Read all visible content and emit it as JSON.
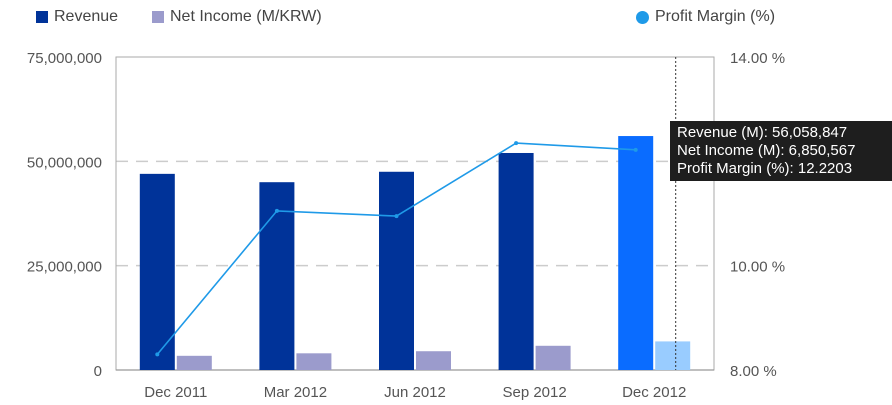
{
  "legend": {
    "revenue_label": "Revenue",
    "net_income_label": "Net Income (M/KRW)",
    "profit_margin_label": "Profit Margin (%)"
  },
  "colors": {
    "revenue": "#003399",
    "revenue_highlight": "#0a6cff",
    "net_income": "#9b9bcc",
    "net_income_highlight": "#99ccff",
    "profit_margin": "#1f9ae8",
    "gridline": "#cccccc",
    "axis_text": "#555555"
  },
  "tooltip": {
    "line1": "Revenue (M): 56,058,847",
    "line2": "Net Income (M): 6,850,567",
    "line3": "Profit Margin (%): 12.2203"
  },
  "chart_data": {
    "type": "bar",
    "categories": [
      "Dec 2011",
      "Mar 2012",
      "Jun 2012",
      "Sep 2012",
      "Dec 2012"
    ],
    "series": [
      {
        "name": "Revenue",
        "values": [
          47000000,
          45000000,
          47500000,
          52000000,
          56058847
        ],
        "axis": "left"
      },
      {
        "name": "Net Income (M/KRW)",
        "values": [
          3400000,
          4000000,
          4500000,
          5800000,
          6850567
        ],
        "axis": "left"
      },
      {
        "name": "Profit Margin (%)",
        "type": "line",
        "values": [
          8.3,
          11.05,
          10.95,
          12.35,
          12.2203
        ],
        "axis": "right"
      }
    ],
    "y_left": {
      "ylim": [
        0,
        75000000
      ],
      "ticks": [
        0,
        25000000,
        50000000,
        75000000
      ],
      "tick_labels": [
        "0",
        "25,000,000",
        "50,000,000",
        "75,000,000"
      ]
    },
    "y_right": {
      "ylim": [
        8,
        14
      ],
      "ticks": [
        8,
        10,
        14
      ],
      "tick_labels": [
        "8.00 %",
        "10.00 %",
        "14.00 %"
      ]
    },
    "highlighted_category": "Dec 2012",
    "grid": true,
    "legend_position": "top"
  }
}
